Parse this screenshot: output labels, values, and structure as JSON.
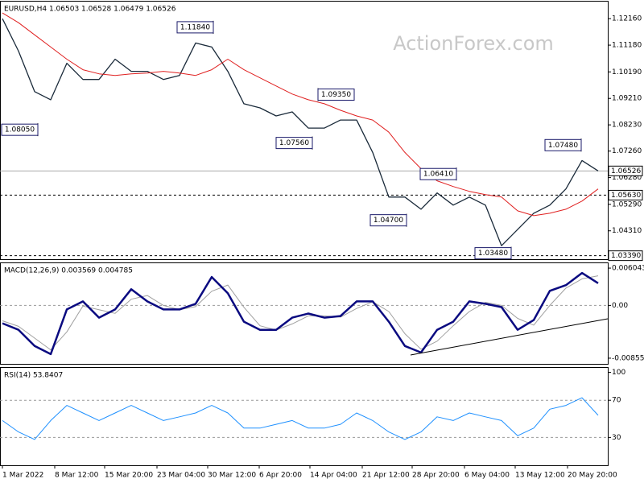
{
  "chart_data": [
    {
      "type": "line",
      "title": "EURUSD,H4  1.06503 1.06528 1.06479 1.06526",
      "watermark": "ActionForex.com",
      "x": [
        0,
        1,
        2,
        3,
        4,
        5,
        6,
        7,
        8,
        9,
        10,
        11,
        12,
        13,
        14,
        15,
        16,
        17,
        18,
        19,
        20,
        21,
        22,
        23,
        24,
        25,
        26,
        27,
        28,
        29,
        30,
        31,
        32,
        33,
        34,
        35,
        36,
        37
      ],
      "xlim": [
        0,
        37.5
      ],
      "ylim": [
        1.0326,
        1.1282
      ],
      "yticks": [
        {
          "value": 1.1216,
          "label": "1.12160"
        },
        {
          "value": 1.1118,
          "label": "1.11180"
        },
        {
          "value": 1.1019,
          "label": "1.10190"
        },
        {
          "value": 1.0921,
          "label": "1.09210"
        },
        {
          "value": 1.0823,
          "label": "1.08230"
        },
        {
          "value": 1.0726,
          "label": "1.07260"
        },
        {
          "value": 1.0628,
          "label": "1.06280"
        },
        {
          "value": 1.0529,
          "label": "1.05290"
        },
        {
          "value": 1.0431,
          "label": "1.04310"
        }
      ],
      "levels": [
        {
          "value": 1.0563,
          "label": "1.05630"
        },
        {
          "value": 1.0339,
          "label": "1.03390"
        }
      ],
      "last": {
        "value": 1.06526,
        "label": "1.06526"
      },
      "series": [
        {
          "color": "#1a2a3a",
          "line_width": 1.3,
          "values": [
            1.1216,
            1.1096,
            1.0946,
            1.0916,
            1.1051,
            1.0991,
            1.0991,
            1.1066,
            1.1021,
            1.1021,
            1.0991,
            1.1006,
            1.1126,
            1.1111,
            1.1021,
            1.0901,
            1.0886,
            1.0856,
            1.0871,
            1.0811,
            1.0811,
            1.0841,
            1.0841,
            1.0721,
            1.0556,
            1.0556,
            1.0511,
            1.0571,
            1.0526,
            1.0556,
            1.0526,
            1.0376,
            1.0436,
            1.0496,
            1.0526,
            1.0586,
            1.0691,
            1.06526
          ]
        },
        {
          "color": "#e02020",
          "line_width": 1,
          "values": [
            1.1237,
            1.1201,
            1.1156,
            1.1111,
            1.1066,
            1.1027,
            1.1012,
            1.1006,
            1.1012,
            1.1015,
            1.1021,
            1.1015,
            1.1006,
            1.1027,
            1.1066,
            1.1027,
            1.0997,
            1.0967,
            1.0937,
            1.0916,
            1.0901,
            1.0877,
            1.0856,
            1.0841,
            1.0796,
            1.0721,
            1.0661,
            1.0616,
            1.0595,
            1.0577,
            1.0565,
            1.0556,
            1.0505,
            1.0487,
            1.0496,
            1.0511,
            1.0541,
            1.0586
          ]
        }
      ],
      "annotations": [
        {
          "x": 13.1,
          "value": 1.1184,
          "label": "1.11840",
          "side": "left"
        },
        {
          "x": 2.2,
          "value": 1.0805,
          "label": "1.08050",
          "side": "left"
        },
        {
          "x": 19.25,
          "value": 1.0756,
          "label": "1.07560",
          "side": "left"
        },
        {
          "x": 19.6,
          "value": 1.0935,
          "label": "1.09350",
          "side": "right"
        },
        {
          "x": 25.1,
          "value": 1.047,
          "label": "1.04700",
          "side": "left"
        },
        {
          "x": 28.2,
          "value": 1.0641,
          "label": "1.06410",
          "side": "left"
        },
        {
          "x": 31.6,
          "value": 1.0348,
          "label": "1.03480",
          "side": "left"
        },
        {
          "x": 35.95,
          "value": 1.0748,
          "label": "1.07480",
          "side": "left"
        }
      ]
    },
    {
      "type": "line",
      "title": "MACD(12,26,9) 0.003569 0.004785",
      "x": [
        0,
        1,
        2,
        3,
        4,
        5,
        6,
        7,
        8,
        9,
        10,
        11,
        12,
        13,
        14,
        15,
        16,
        17,
        18,
        19,
        20,
        21,
        22,
        23,
        24,
        25,
        26,
        27,
        28,
        29,
        30,
        31,
        32,
        33,
        34,
        35,
        36,
        37
      ],
      "xlim": [
        0,
        37.5
      ],
      "ylim": [
        -0.009473,
        0.006964
      ],
      "yticks": [
        0.006043,
        {
          "value": 0,
          "label": "0.00"
        },
        -0.008552
      ],
      "levels": [
        0
      ],
      "series": [
        {
          "color": "#a0a0a0",
          "line_width": 1,
          "values": [
            -0.0025,
            -0.0034,
            -0.0053,
            -0.0072,
            -0.0043,
            -0.0001,
            -0.0007,
            -0.0013,
            0.001,
            0.0016,
            0,
            -0.0007,
            -0.0002,
            0.0023,
            0.0033,
            -0.0003,
            -0.0033,
            -0.004,
            -0.003,
            -0.0017,
            -0.0017,
            -0.0019,
            -0.0005,
            0.0006,
            -0.001,
            -0.0046,
            -0.0071,
            -0.0058,
            -0.0033,
            -0.001,
            0.0005,
            0,
            -0.0021,
            -0.0032,
            0,
            0.0028,
            0.0043,
            0.0048
          ]
        },
        {
          "color": "#0a0a80",
          "line_width": 2.5,
          "values": [
            -0.0029,
            -0.00395,
            -0.00658,
            -0.0079,
            -0.00066,
            0.00065,
            -0.00198,
            -0.00066,
            0.00262,
            0.00065,
            -0.00066,
            -0.00066,
            0.00026,
            0.0046,
            0.00197,
            -0.00264,
            -0.00395,
            -0.00395,
            -0.00198,
            -0.00132,
            -0.00198,
            -0.00172,
            0.00065,
            0.00065,
            -0.00264,
            -0.00658,
            -0.00763,
            -0.00395,
            -0.00264,
            0.00065,
            0.00026,
            -0.00027,
            -0.00395,
            -0.00237,
            0.00236,
            0.00328,
            0.00525,
            0.0036
          ]
        }
      ]
    },
    {
      "type": "line",
      "title": "RSI(14) 53.8407",
      "x": [
        0,
        1,
        2,
        3,
        4,
        5,
        6,
        7,
        8,
        9,
        10,
        11,
        12,
        13,
        14,
        15,
        16,
        17,
        18,
        19,
        20,
        21,
        22,
        23,
        24,
        25,
        26,
        27,
        28,
        29,
        30,
        31,
        32,
        33,
        34,
        35,
        36,
        37
      ],
      "xlim": [
        0,
        37.5
      ],
      "ylim": [
        0,
        105.7
      ],
      "yticks": [
        100,
        70,
        30
      ],
      "levels": [
        70,
        30
      ],
      "xticks": [
        {
          "value": 0,
          "label": "1 Mar 2022"
        },
        {
          "value": 3.25,
          "label": "8 Mar 12:00"
        },
        {
          "value": 6.35,
          "label": "15 Mar 20:00"
        },
        {
          "value": 9.6,
          "label": "23 Mar 04:00"
        },
        {
          "value": 12.75,
          "label": "30 Mar 12:00"
        },
        {
          "value": 15.95,
          "label": "6 Apr 20:00"
        },
        {
          "value": 19.1,
          "label": "14 Apr 04:00"
        },
        {
          "value": 22.35,
          "label": "21 Apr 12:00"
        },
        {
          "value": 25.45,
          "label": "28 Apr 20:00"
        },
        {
          "value": 28.7,
          "label": "6 May 04:00"
        },
        {
          "value": 31.85,
          "label": "13 May 12:00"
        },
        {
          "value": 35.1,
          "label": "20 May 20:00"
        }
      ],
      "series": [
        {
          "color": "#1e90ff",
          "line_width": 1,
          "values": [
            48.2,
            35.9,
            27.8,
            48.2,
            64.5,
            56.3,
            48.2,
            56.3,
            64.5,
            56.3,
            48.2,
            52.2,
            56.3,
            64.5,
            56.3,
            40,
            40,
            44.1,
            48.2,
            40,
            40,
            44.1,
            56.3,
            48.2,
            35.9,
            27.8,
            35.9,
            52.2,
            48.2,
            56.3,
            52.2,
            48.2,
            31.8,
            40,
            60.4,
            64.5,
            72.7,
            53.8407
          ]
        }
      ]
    }
  ]
}
